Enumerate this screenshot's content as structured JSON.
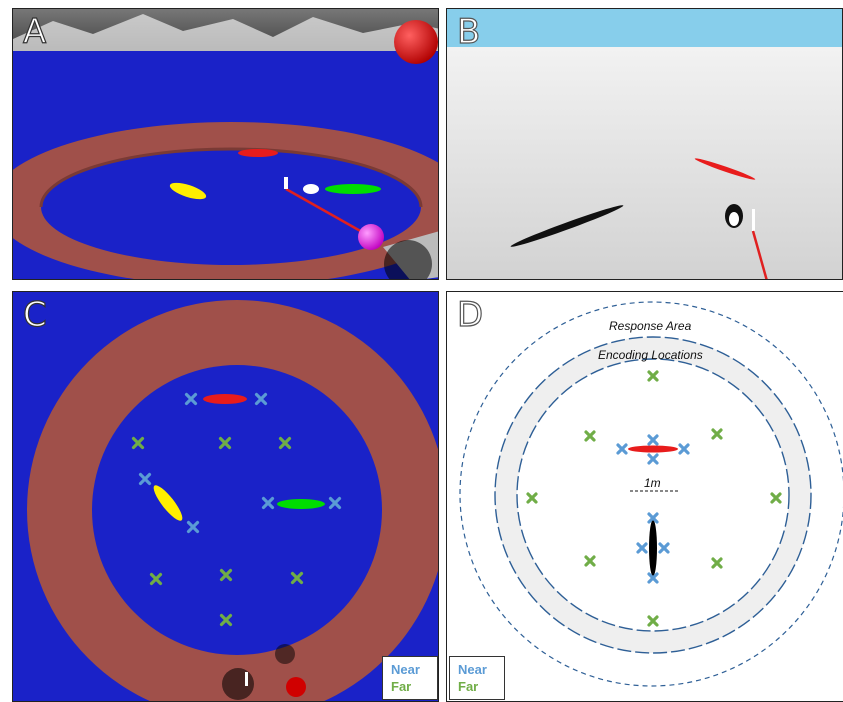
{
  "panels": {
    "a": {
      "label": "A"
    },
    "b": {
      "label": "B"
    },
    "c": {
      "label": "C"
    },
    "d": {
      "label": "D"
    }
  },
  "legend": {
    "near": "Near",
    "far": "Far"
  },
  "diagram": {
    "response_area": "Response Area",
    "encoding_locations": "Encoding Locations",
    "scale": "1m"
  },
  "colors": {
    "near": "#5b9bd5",
    "far": "#70ad47",
    "arena_floor": "#1a22c8",
    "arena_wall": "#a0504a"
  }
}
